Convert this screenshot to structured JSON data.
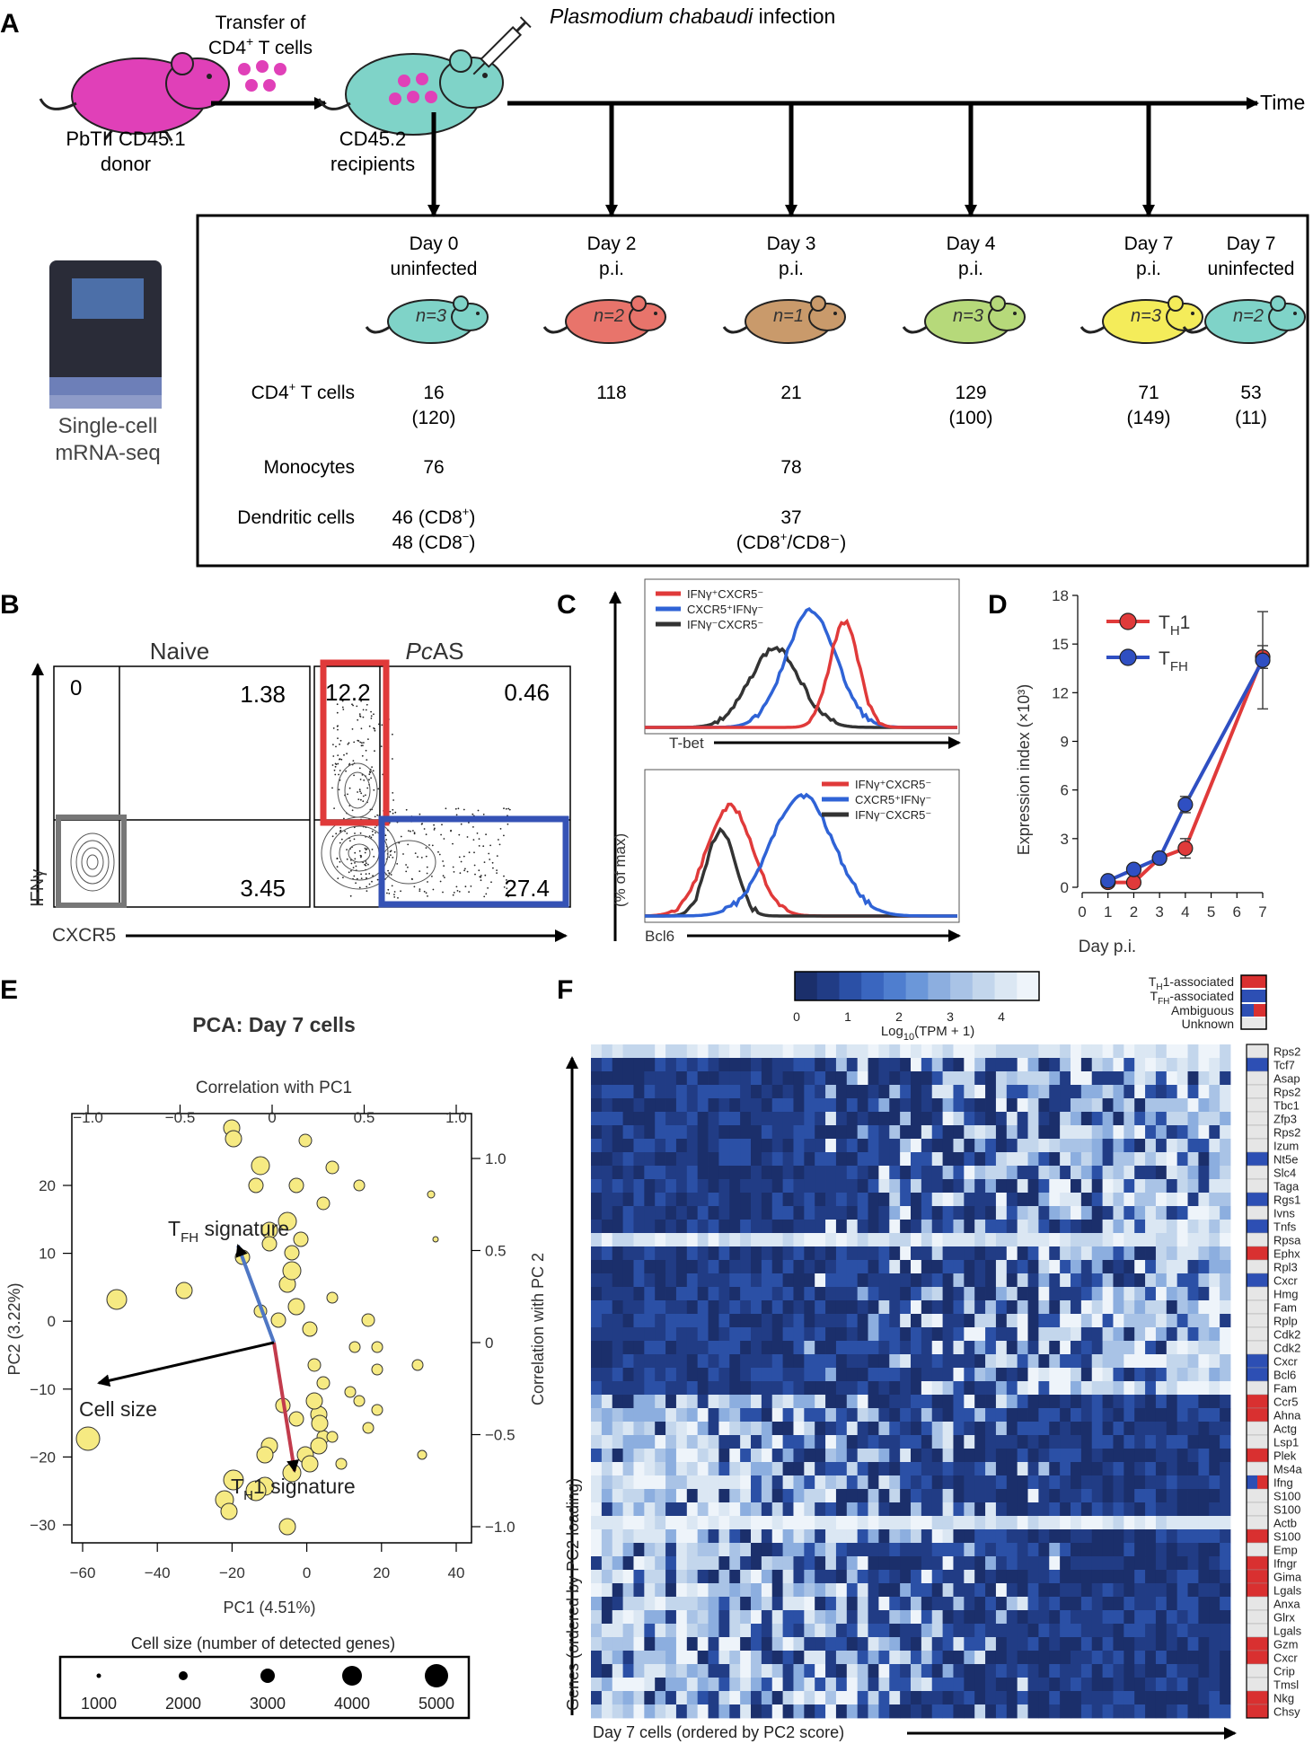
{
  "panelA": {
    "letter": "A",
    "transfer_line1": "Transfer of",
    "transfer_line2": "CD4",
    "transfer_line2_sup": "+",
    "transfer_line2_rest": " T cells",
    "infection_species": "Plasmodium chabaudi",
    "infection_rest": " infection",
    "donor_line1": "PbTII CD45.1",
    "donor_line2": "donor",
    "recipient_line1": "CD45.2",
    "recipient_line2": "recipients",
    "time_label": "Time",
    "machine_line1": "Single-cell",
    "machine_line2": "mRNA-seq",
    "columns": [
      {
        "line1": "Day 0",
        "line2": "uninfected",
        "n": "n=3",
        "color": "#7fd3c8",
        "cd4": "16",
        "cd4_sub": "(120)",
        "mono": "76",
        "dc1": "46 (CD8",
        "dc1_sup": "+",
        "dc1_end": ")",
        "dc2": "48 (CD8",
        "dc2_sup": "−",
        "dc2_end": ")"
      },
      {
        "line1": "Day 2",
        "line2": "p.i.",
        "n": "n=2",
        "color": "#e8746b",
        "cd4": "118",
        "cd4_sub": "",
        "mono": "",
        "dc1": "",
        "dc1_sup": "",
        "dc1_end": "",
        "dc2": "",
        "dc2_sup": "",
        "dc2_end": ""
      },
      {
        "line1": "Day 3",
        "line2": "p.i.",
        "n": "n=1",
        "color": "#c99a6b",
        "cd4": "21",
        "cd4_sub": "",
        "mono": "78",
        "dc1": "37",
        "dc1_sup": "",
        "dc1_end": "",
        "dc2": "(CD8",
        "dc2_sup": "+",
        "dc2_end": "/CD8⁻)"
      },
      {
        "line1": "Day 4",
        "line2": "p.i.",
        "n": "n=3",
        "color": "#b6d97a",
        "cd4": "129",
        "cd4_sub": "(100)",
        "mono": "",
        "dc1": "",
        "dc1_sup": "",
        "dc1_end": "",
        "dc2": "",
        "dc2_sup": "",
        "dc2_end": ""
      },
      {
        "line1": "Day 7",
        "line2": "p.i.",
        "n": "n=3",
        "color": "#f4ec5a",
        "cd4": "71",
        "cd4_sub": "(149)",
        "mono": "",
        "dc1": "",
        "dc1_sup": "",
        "dc1_end": "",
        "dc2": "",
        "dc2_sup": "",
        "dc2_end": ""
      },
      {
        "line1": "Day 7",
        "line2": "uninfected",
        "n": "n=2",
        "color": "#7fd3c8",
        "cd4": "53",
        "cd4_sub": "(11)",
        "mono": "",
        "dc1": "",
        "dc1_sup": "",
        "dc1_end": "",
        "dc2": "",
        "dc2_sup": "",
        "dc2_end": ""
      }
    ],
    "row_cd4": "CD4",
    "row_cd4_sup": "+",
    "row_cd4_rest": " T cells",
    "row_mono": "Monocytes",
    "row_dc": "Dendritic cells"
  },
  "panelB": {
    "letter": "B",
    "naive": "Naive",
    "pcas": "PcAS",
    "q_naive_ul": "0",
    "q_naive_ur": "1.38",
    "q_naive_lr": "3.45",
    "q_pcas_ul": "12.2",
    "q_pcas_ur": "0.46",
    "q_pcas_lr": "27.4",
    "ylabel": "IFNγ",
    "xlabel": "CXCR5"
  },
  "panelC": {
    "letter": "C",
    "ylabel": "(% of max)",
    "top_xlabel": "T-bet",
    "bottom_xlabel": "Bcl6",
    "legend": [
      {
        "label": "IFNγ⁺CXCR5⁻",
        "color": "#e03a3a"
      },
      {
        "label": "CXCR5⁺IFNγ⁻",
        "color": "#2f63d6"
      },
      {
        "label": "IFNγ⁻CXCR5⁻",
        "color": "#333333"
      }
    ]
  },
  "panelE": {
    "letter": "E",
    "title": "PCA: Day 7 cells",
    "top_axis_label": "Correlation with PC1",
    "right_axis_label": "Correlation with PC 2",
    "xlabel": "PC1 (4.51%)",
    "ylabel": "PC2 (3.22%)",
    "top_ticks": [
      "−1.0",
      "−0.5",
      "0",
      "0.5",
      "1.0"
    ],
    "right_ticks": [
      "1.0",
      "0.5",
      "0",
      "−0.5",
      "−1.0"
    ],
    "bottom_ticks": [
      "−60",
      "−40",
      "−20",
      "0",
      "20",
      "40"
    ],
    "left_ticks": [
      "20",
      "10",
      "0",
      "−10",
      "−20",
      "−30"
    ],
    "tfh_label": "T",
    "tfh_sub": "FH",
    "tfh_rest": " signature",
    "th1_label": "T",
    "th1_sub": "H",
    "th1_rest": "1 signature",
    "cellsize_label": "Cell size",
    "size_legend_title": "Cell size (number of detected genes)",
    "size_legend_values": [
      "1000",
      "2000",
      "3000",
      "4000",
      "5000"
    ]
  },
  "panelF": {
    "letter": "F",
    "colorbar_label": "Log",
    "colorbar_sub": "10",
    "colorbar_rest": "(TPM + 1)",
    "colorbar_ticks": [
      "0",
      "1",
      "2",
      "3",
      "4"
    ],
    "annotation_legend": [
      {
        "label": "Tₕ₁-associated",
        "color": "#d93030"
      },
      {
        "label": "Tₕₗ-associated",
        "color": "#2d4fb4"
      },
      {
        "label": "Ambiguous",
        "color": "split"
      },
      {
        "label": "Unknown",
        "color": "#e8e8e8"
      }
    ],
    "annotation_labels": [
      "T",
      "H",
      "1-associated",
      "T",
      "FH",
      "-associated",
      "Ambiguous",
      "Unknown"
    ],
    "ylabel": "Genes (ordered by PC2 loading)",
    "xlabel": "Day 7 cells (ordered by PC2 score)",
    "genes": [
      "Rps2",
      "Tcf7",
      "Asap",
      "Rps2",
      "Tbc1",
      "Zfp3",
      "Rps2",
      "Izum",
      "Nt5e",
      "Slc4",
      "Taga",
      "Rgs1",
      "Ivns",
      "Tnfs",
      "Rpsa",
      "Ephx",
      "Rpl3",
      "Cxcr",
      "Hmg",
      "Fam",
      "Rplp",
      "Cdk2",
      "Cdk2",
      "Cxcr",
      "Bcl6",
      "Fam",
      "Ccr5",
      "Ahna",
      "Actg",
      "Lsp1",
      "Plek",
      "Ms4a",
      "Ifng",
      "S100",
      "S100",
      "Actb",
      "S100",
      "Emp",
      "Ifngr",
      "Gima",
      "Lgals",
      "Anxa",
      "Glrx",
      "Lgals",
      "Gzm",
      "Cxcr",
      "Crip",
      "Tmsl",
      "Nkg",
      "Chsy"
    ],
    "gene_class": [
      "u",
      "b",
      "u",
      "u",
      "u",
      "u",
      "u",
      "u",
      "b",
      "u",
      "u",
      "b",
      "u",
      "b",
      "u",
      "r",
      "u",
      "b",
      "u",
      "u",
      "u",
      "u",
      "u",
      "b",
      "b",
      "u",
      "r",
      "r",
      "u",
      "u",
      "r",
      "u",
      "a",
      "u",
      "u",
      "u",
      "r",
      "u",
      "r",
      "r",
      "r",
      "u",
      "u",
      "u",
      "r",
      "r",
      "u",
      "u",
      "r",
      "r"
    ]
  },
  "chart_data": {
    "type": "line",
    "panel": "D",
    "letter": "D",
    "xlabel": "Day p.i.",
    "ylabel": "Expression index (×10³)",
    "x_ticks": [
      "0",
      "1",
      "2",
      "3",
      "4",
      "5",
      "6",
      "7"
    ],
    "y_ticks": [
      "0",
      "3",
      "6",
      "9",
      "12",
      "15",
      "18"
    ],
    "xlim": [
      0,
      7
    ],
    "ylim": [
      0,
      18
    ],
    "legend_position": "top-left",
    "series": [
      {
        "name": "T",
        "name_sub": "H",
        "name_rest": "1",
        "color": "#e03a3a",
        "x": [
          1,
          2,
          3,
          4,
          7
        ],
        "y": [
          0.3,
          0.3,
          1.8,
          2.4,
          14.2
        ],
        "err": [
          0.2,
          0.2,
          0.3,
          0.6,
          0.7
        ]
      },
      {
        "name": "T",
        "name_sub": "FH",
        "name_rest": "",
        "color": "#2f4fc2",
        "x": [
          1,
          2,
          3,
          4,
          7
        ],
        "y": [
          0.4,
          1.1,
          1.8,
          5.1,
          14.0
        ],
        "err": [
          0.2,
          0.2,
          0.3,
          0.5,
          3.0
        ]
      }
    ]
  }
}
